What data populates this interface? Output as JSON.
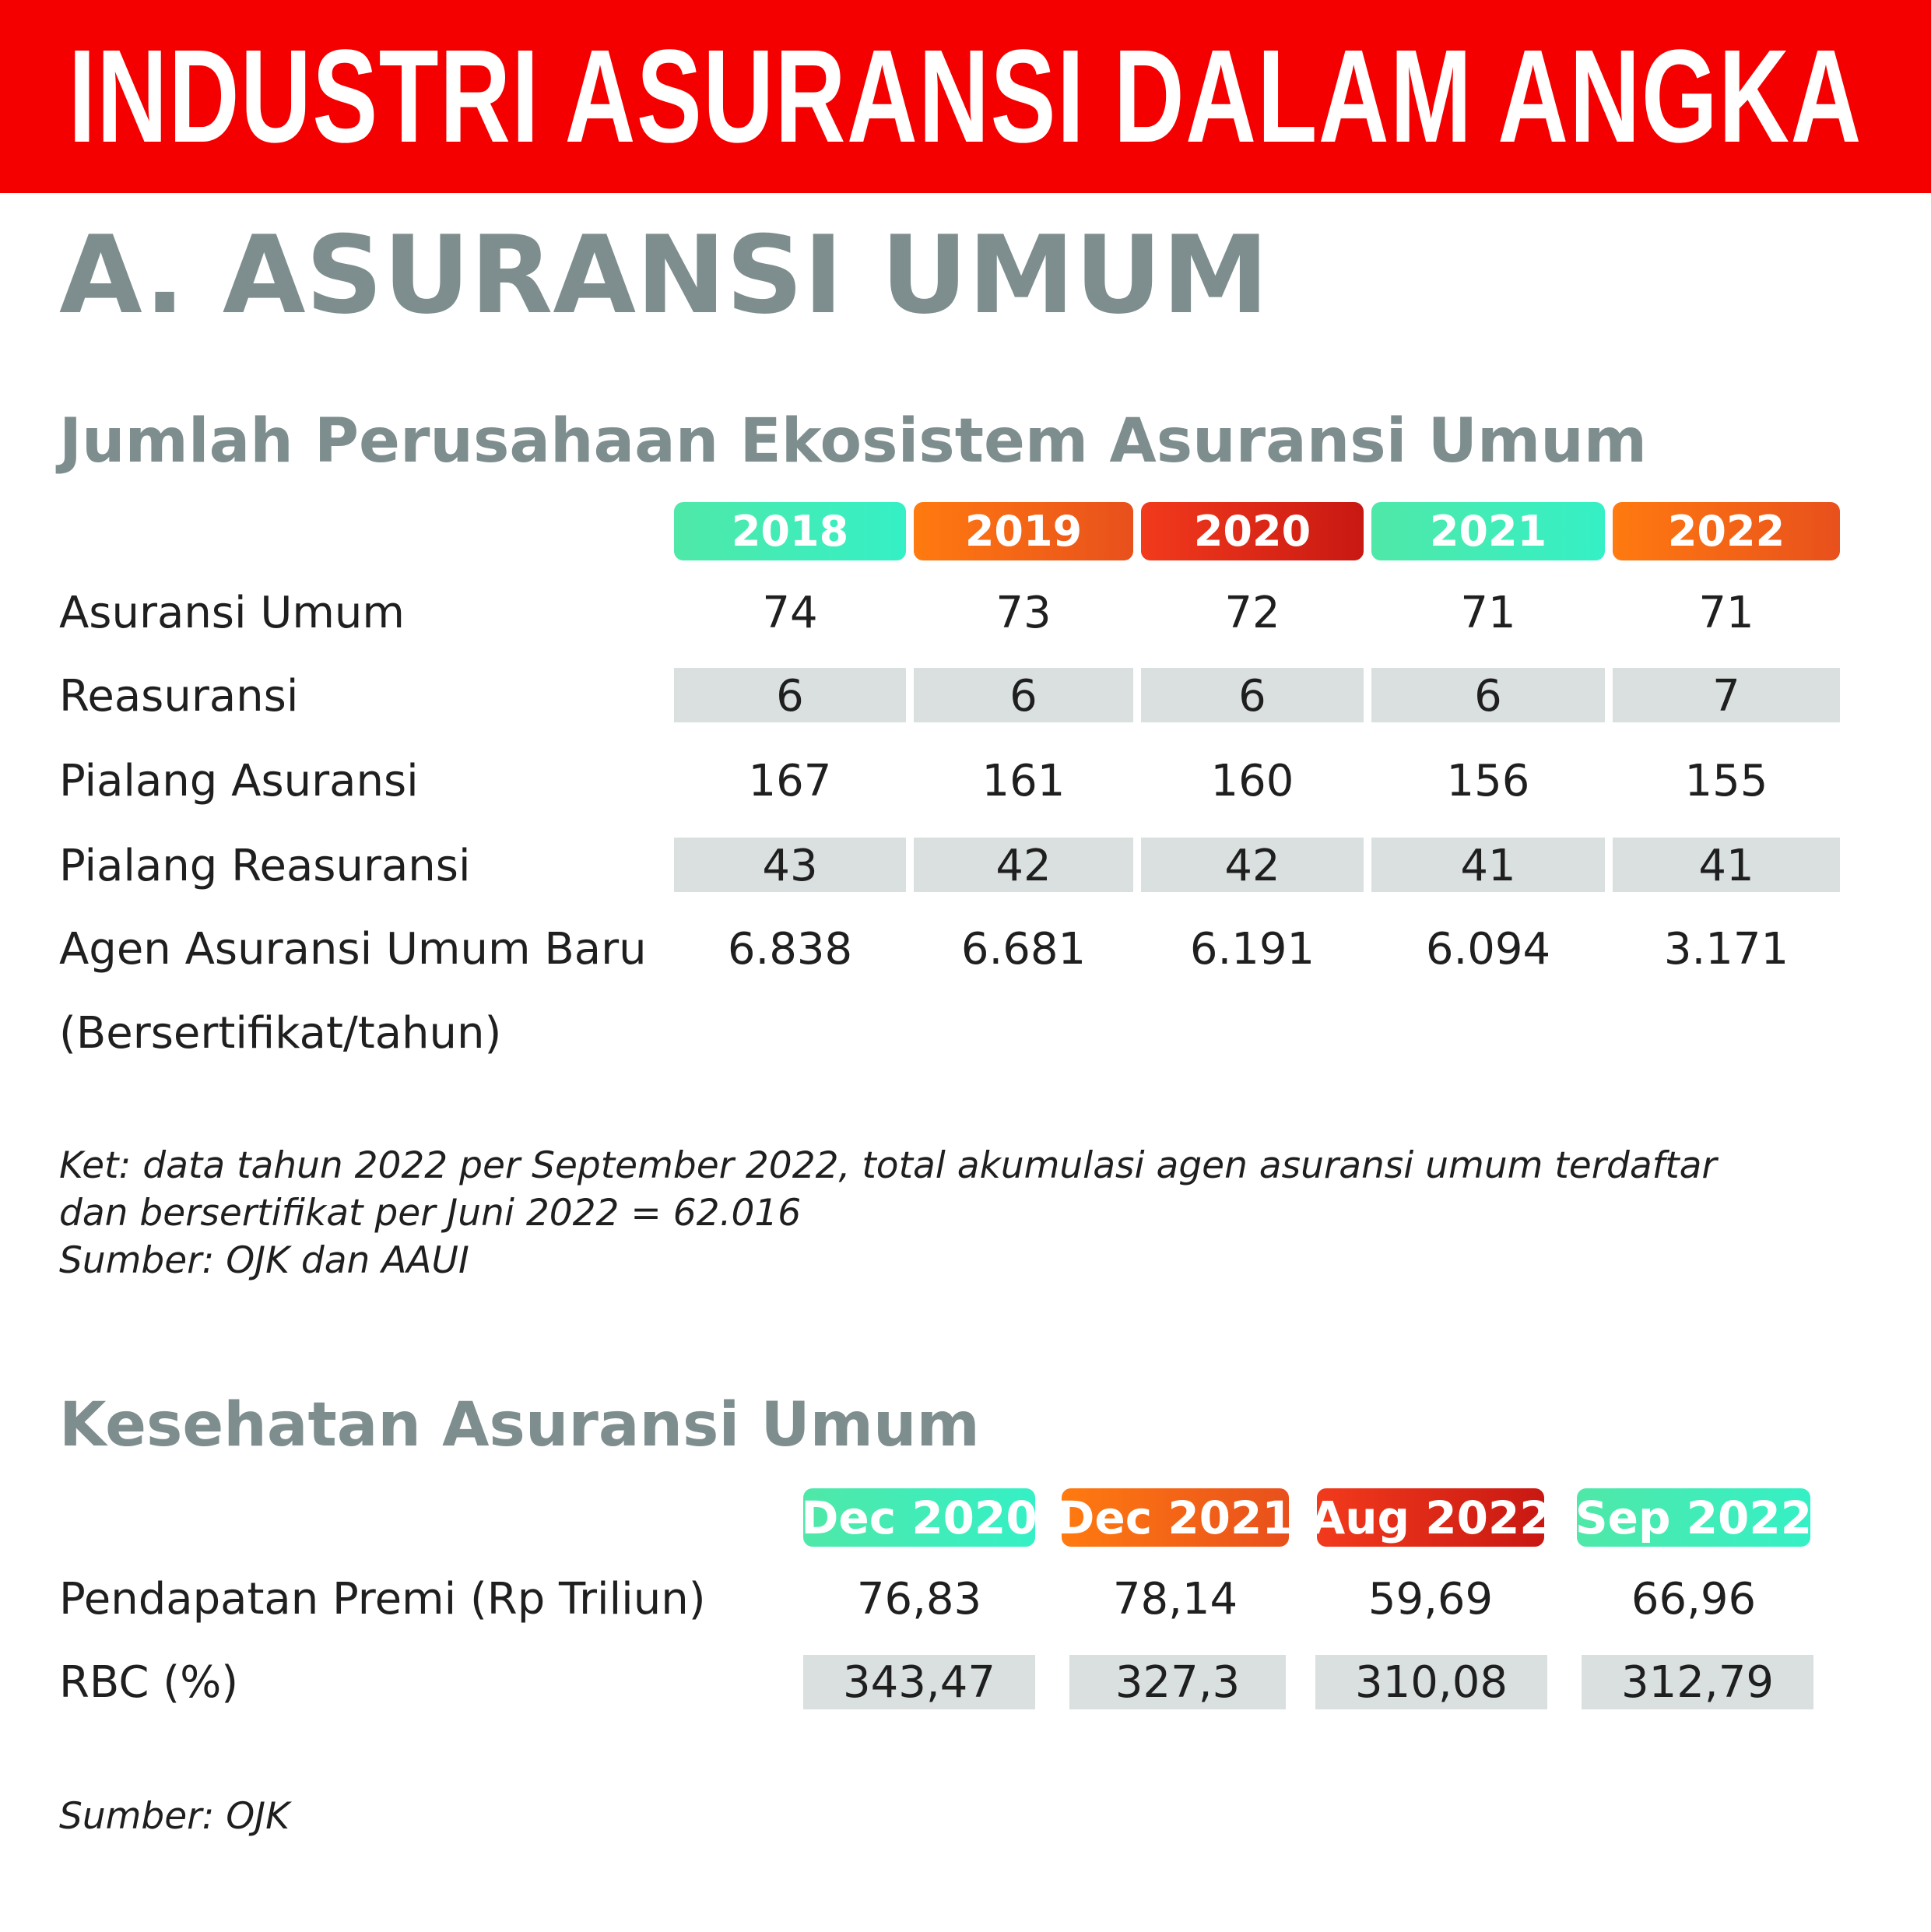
{
  "banner": {
    "title": "INDUSTRI ASURANSI DALAM ANGKA"
  },
  "section": {
    "title": "A. ASURANSI UMUM"
  },
  "ecosystem": {
    "title": "Jumlah Perusahaan Ekosistem Asuransi Umum",
    "years": [
      "2018",
      "2019",
      "2020",
      "2021",
      "2022"
    ],
    "year_colors": [
      "#3cf0b4",
      "#f26a18",
      "#dc2a16",
      "#3cf0b4",
      "#f26a18"
    ],
    "rows": [
      {
        "label": "Asuransi Umum",
        "values": [
          "74",
          "73",
          "72",
          "71",
          "71"
        ],
        "shaded": false
      },
      {
        "label": "Reasuransi",
        "values": [
          "6",
          "6",
          "6",
          "6",
          "7"
        ],
        "shaded": true
      },
      {
        "label": "Pialang Asuransi",
        "values": [
          "167",
          "161",
          "160",
          "156",
          "155"
        ],
        "shaded": false
      },
      {
        "label": "Pialang Reasuransi",
        "values": [
          "43",
          "42",
          "42",
          "41",
          "41"
        ],
        "shaded": true
      },
      {
        "label": "Agen Asuransi Umum Baru",
        "label_line2": "(Bersertifikat/tahun)",
        "values": [
          "6.838",
          "6.681",
          "6.191",
          "6.094",
          "3.171"
        ],
        "shaded": false
      }
    ],
    "note_lines": [
      "Ket: data tahun 2022 per September 2022, total akumulasi agen asuransi umum terdaftar",
      "dan bersertifikat per Juni 2022 = 62.016",
      "Sumber: OJK dan AAUI"
    ]
  },
  "health": {
    "title": "Kesehatan Asuransi Umum",
    "periods": [
      "Dec 2020",
      "Dec 2021",
      "Aug 2022",
      "Sep 2022"
    ],
    "period_colors": [
      "#3cf0b4",
      "#f26a18",
      "#dc2a16",
      "#3cf0b4"
    ],
    "rows": [
      {
        "label": "Pendapatan Premi (Rp Triliun)",
        "values": [
          "76,83",
          "78,14",
          "59,69",
          "66,96"
        ],
        "shaded": false
      },
      {
        "label": "RBC (%)",
        "values": [
          "343,47",
          "327,3",
          "310,08",
          "312,79"
        ],
        "shaded": true
      }
    ],
    "source": "Sumber: OJK"
  }
}
